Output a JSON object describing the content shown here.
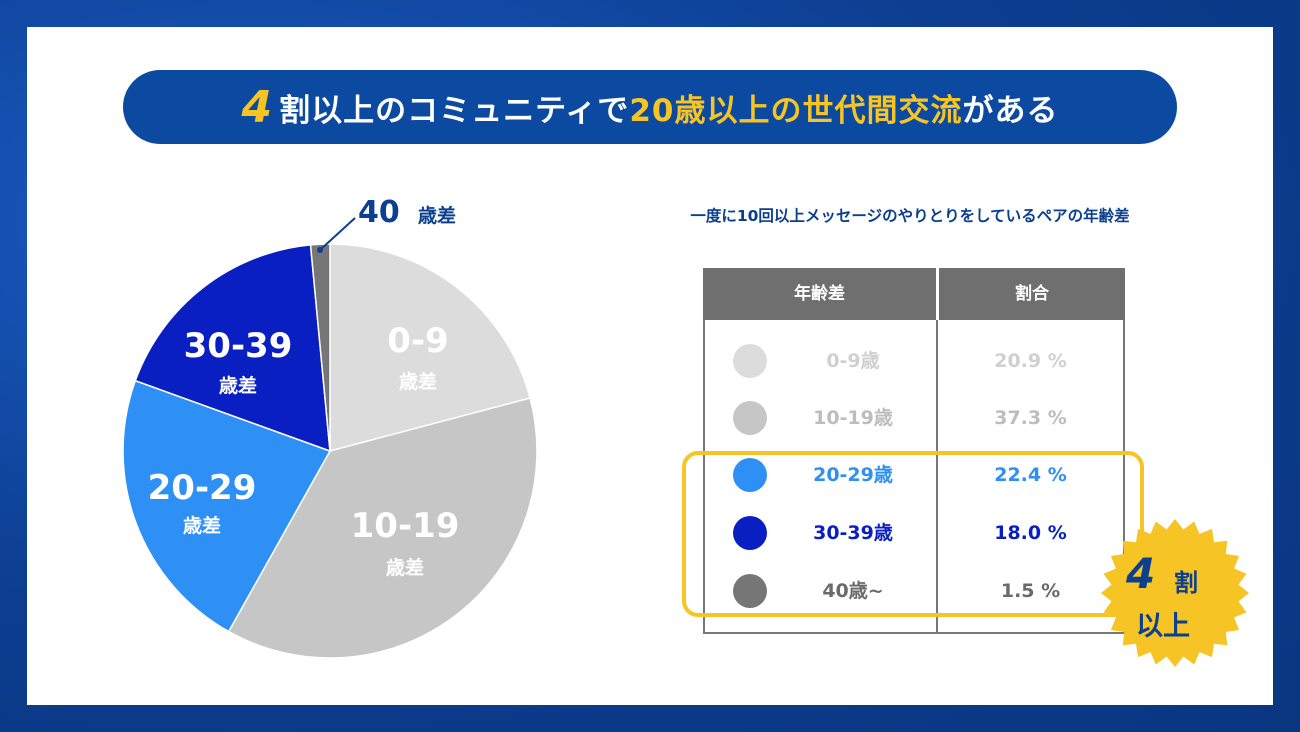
{
  "title": {
    "lead": "4",
    "part1": "割以上のコミュニティで",
    "highlight": "20歳以上の世代間交流",
    "part2": "がある"
  },
  "subtitle": "一度に10回以上メッセージのやりとりをしているペアの年齢差",
  "pie_labels": {
    "s0": {
      "range": "0-9",
      "unit": "歳差"
    },
    "s1": {
      "range": "10-19",
      "unit": "歳差"
    },
    "s2": {
      "range": "20-29",
      "unit": "歳差"
    },
    "s3": {
      "range": "30-39",
      "unit": "歳差"
    },
    "s4": {
      "range": "40",
      "unit": "歳差"
    }
  },
  "table": {
    "headers": [
      "年齢差",
      "割合"
    ],
    "rows": [
      {
        "label": "0-9歳",
        "value": "20.9 %"
      },
      {
        "label": "10-19歳",
        "value": "37.3 %"
      },
      {
        "label": "20-29歳",
        "value": "22.4 %"
      },
      {
        "label": "30-39歳",
        "value": "18.0 %"
      },
      {
        "label": "40歳~",
        "value": "1.5 %"
      }
    ]
  },
  "badge": {
    "num": "4",
    "l1": "割",
    "l2": "以上"
  },
  "colors": {
    "accent": "#f7c425",
    "navy": "#0b3f8f"
  },
  "chart_data": {
    "type": "pie",
    "categories": [
      "0-9",
      "10-19",
      "20-29",
      "30-39",
      "40"
    ],
    "values": [
      20.9,
      37.3,
      22.4,
      18.0,
      1.5
    ],
    "colors": [
      "#dcdcdc",
      "#c6c6c6",
      "#2e8ff4",
      "#0a1fc2",
      "#767676"
    ],
    "title": "一度に10回以上メッセージのやりとりをしているペアの年齢差"
  }
}
